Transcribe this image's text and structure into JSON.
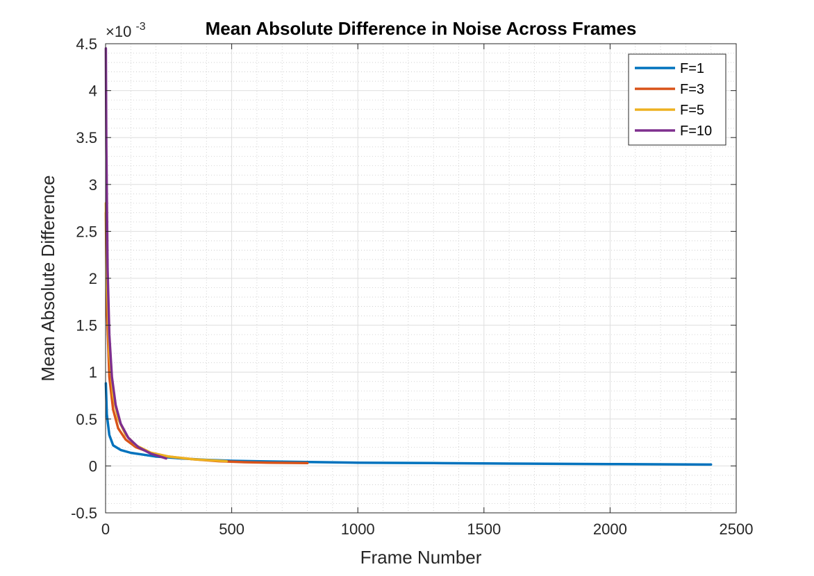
{
  "chart_data": {
    "type": "line",
    "title": "Mean Absolute Difference in Noise Across Frames",
    "xlabel": "Frame Number",
    "ylabel": "Mean Absolute Difference",
    "y_exponent_label": "×10",
    "y_exponent_power": "-3",
    "xlim": [
      0,
      2500
    ],
    "ylim": [
      -0.5,
      4.5
    ],
    "y_scale_note": "values in units of 1e-3",
    "xticks": [
      0,
      500,
      1000,
      1500,
      2000,
      2500
    ],
    "xtick_labels": [
      "0",
      "500",
      "1000",
      "1500",
      "2000",
      "2500"
    ],
    "yticks": [
      -0.5,
      0,
      0.5,
      1,
      1.5,
      2,
      2.5,
      3,
      3.5,
      4,
      4.5
    ],
    "ytick_labels": [
      "-0.5",
      "0",
      "0.5",
      "1",
      "1.5",
      "2",
      "2.5",
      "3",
      "3.5",
      "4",
      "4.5"
    ],
    "grid": true,
    "minor_grid": true,
    "legend_position": "top-right",
    "series": [
      {
        "name": "F=1",
        "color": "#0072BD",
        "x": [
          1,
          5,
          15,
          30,
          60,
          100,
          150,
          200,
          300,
          400,
          500,
          700,
          1000,
          1300,
          1600,
          2000,
          2400
        ],
        "y": [
          0.88,
          0.55,
          0.33,
          0.22,
          0.17,
          0.14,
          0.12,
          0.1,
          0.08,
          0.065,
          0.055,
          0.045,
          0.035,
          0.03,
          0.025,
          0.02,
          0.015
        ]
      },
      {
        "name": "F=3",
        "color": "#D95319",
        "x": [
          1,
          5,
          15,
          30,
          50,
          80,
          120,
          180,
          250,
          350,
          450,
          550,
          650,
          800
        ],
        "y": [
          2.7,
          1.7,
          0.95,
          0.6,
          0.4,
          0.28,
          0.2,
          0.14,
          0.1,
          0.07,
          0.05,
          0.04,
          0.035,
          0.03
        ]
      },
      {
        "name": "F=5",
        "color": "#EDB120",
        "x": [
          1,
          5,
          15,
          30,
          50,
          80,
          120,
          180,
          250,
          350,
          480
        ],
        "y": [
          2.8,
          2.0,
          1.2,
          0.75,
          0.5,
          0.33,
          0.22,
          0.14,
          0.1,
          0.07,
          0.05
        ]
      },
      {
        "name": "F=10",
        "color": "#7E2F8E",
        "x": [
          1,
          3,
          8,
          15,
          25,
          40,
          60,
          90,
          130,
          180,
          240
        ],
        "y": [
          4.45,
          3.4,
          2.1,
          1.4,
          0.95,
          0.65,
          0.45,
          0.3,
          0.2,
          0.13,
          0.08
        ]
      }
    ]
  }
}
